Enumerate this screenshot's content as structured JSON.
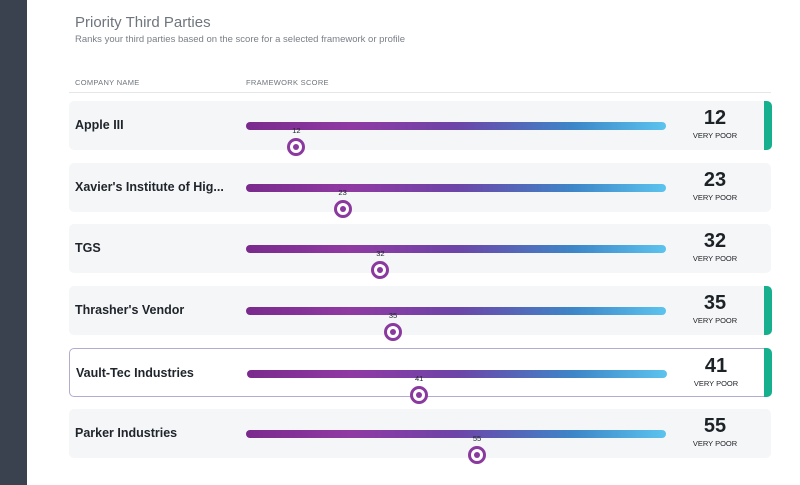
{
  "header": {
    "title": "Priority Third Parties",
    "subtitle": "Ranks your third parties based on the score for a selected framework or profile"
  },
  "columns": {
    "company": "COMPANY NAME",
    "score": "FRAMEWORK SCORE"
  },
  "colors": {
    "flag": "#16b08f",
    "gradient_start": "#7a2a8c",
    "gradient_end": "#5cc3ee"
  },
  "rows": [
    {
      "name": "Apple III",
      "score": "12",
      "value": 0.12,
      "rating": "VERY POOR",
      "flagged": true,
      "selected": false
    },
    {
      "name": "Xavier's Institute of Hig...",
      "score": "23",
      "value": 0.23,
      "rating": "VERY POOR",
      "flagged": false,
      "selected": false
    },
    {
      "name": "TGS",
      "score": "32",
      "value": 0.32,
      "rating": "VERY POOR",
      "flagged": false,
      "selected": false
    },
    {
      "name": "Thrasher's Vendor",
      "score": "35",
      "value": 0.35,
      "rating": "VERY POOR",
      "flagged": true,
      "selected": false
    },
    {
      "name": "Vault-Tec Industries",
      "score": "41",
      "value": 0.41,
      "rating": "VERY POOR",
      "flagged": true,
      "selected": true
    },
    {
      "name": "Parker Industries",
      "score": "55",
      "value": 0.55,
      "rating": "VERY POOR",
      "flagged": false,
      "selected": false
    }
  ]
}
